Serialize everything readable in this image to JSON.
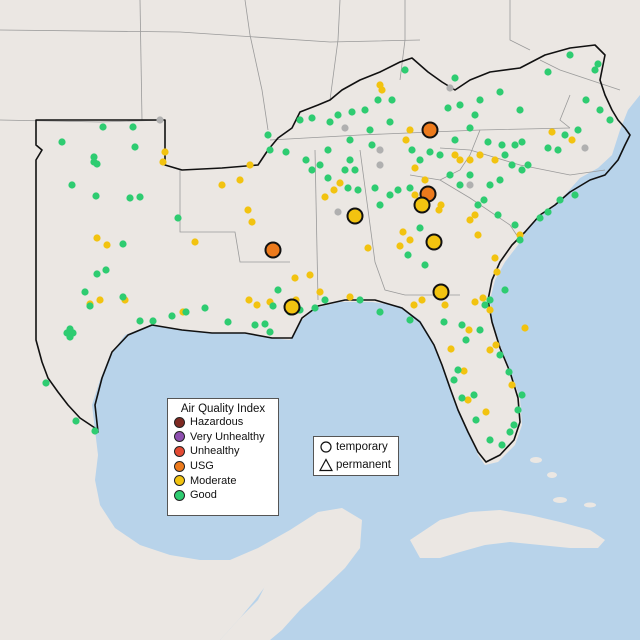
{
  "legend": {
    "title": "Air Quality Index",
    "categories": [
      {
        "label": "Hazardous",
        "color": "#7e2a22"
      },
      {
        "label": "Very Unhealthy",
        "color": "#8e4fb0"
      },
      {
        "label": "Unhealthy",
        "color": "#e34a33"
      },
      {
        "label": "USG",
        "color": "#ec7a1c"
      },
      {
        "label": "Moderate",
        "color": "#f2c310"
      },
      {
        "label": "Good",
        "color": "#2ecc71"
      }
    ]
  },
  "monitor_types": {
    "temporary_label": "temporary",
    "permanent_label": "permanent",
    "temporary_icon": "circle-icon",
    "permanent_icon": "triangle-icon"
  },
  "colors": {
    "ocean": "#b8d3ea",
    "land": "#ebe7e3",
    "region_border": "#111111",
    "no_data_monitor": "#b0b0b0"
  },
  "large_monitors": [
    {
      "level": "USG",
      "type": "temporary"
    },
    {
      "level": "USG",
      "type": "temporary"
    },
    {
      "level": "USG",
      "type": "temporary"
    },
    {
      "level": "Moderate",
      "type": "temporary"
    },
    {
      "level": "Moderate",
      "type": "temporary"
    },
    {
      "level": "Moderate",
      "type": "temporary"
    },
    {
      "level": "Moderate",
      "type": "temporary"
    },
    {
      "level": "Moderate",
      "type": "temporary"
    }
  ]
}
